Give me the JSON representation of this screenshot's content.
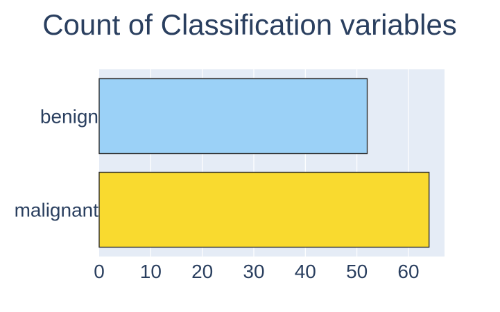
{
  "chart_data": {
    "type": "bar",
    "orientation": "horizontal",
    "title": "Count of Classification variables",
    "xlabel": "",
    "ylabel": "",
    "categories": [
      "benign",
      "malignant"
    ],
    "values": [
      52,
      64
    ],
    "colors": [
      "#9bd1f7",
      "#f9da2f"
    ],
    "xlim": [
      0,
      67
    ],
    "xticks": [
      0,
      10,
      20,
      30,
      40,
      50,
      60
    ],
    "grid": true,
    "legend": "none"
  }
}
